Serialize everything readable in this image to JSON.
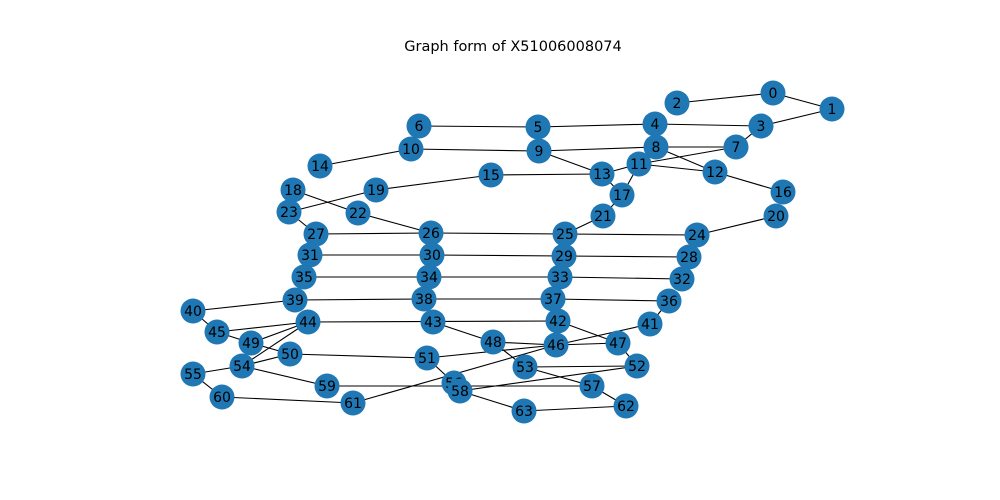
{
  "title": "Graph form of X51006008074",
  "style": {
    "node_color": "#1f77b4",
    "edge_color": "#000000",
    "background": "#ffffff"
  },
  "nodes": [
    "0",
    "1",
    "2",
    "3",
    "4",
    "5",
    "6",
    "7",
    "8",
    "9",
    "10",
    "11",
    "12",
    "13",
    "14",
    "15",
    "16",
    "17",
    "18",
    "19",
    "20",
    "21",
    "22",
    "23",
    "24",
    "25",
    "26",
    "27",
    "28",
    "29",
    "30",
    "31",
    "32",
    "33",
    "34",
    "35",
    "36",
    "37",
    "38",
    "39",
    "40",
    "41",
    "42",
    "43",
    "44",
    "45",
    "46",
    "47",
    "48",
    "49",
    "50",
    "51",
    "52",
    "53",
    "54",
    "55",
    "56",
    "57",
    "58",
    "59",
    "60",
    "61",
    "62",
    "63"
  ],
  "edges": [
    [
      "2",
      "0"
    ],
    [
      "0",
      "1"
    ],
    [
      "1",
      "3"
    ],
    [
      "4",
      "3"
    ],
    [
      "6",
      "5"
    ],
    [
      "5",
      "4"
    ],
    [
      "3",
      "7"
    ],
    [
      "7",
      "11"
    ],
    [
      "8",
      "7"
    ],
    [
      "10",
      "9"
    ],
    [
      "9",
      "8"
    ],
    [
      "9",
      "13"
    ],
    [
      "4",
      "8"
    ],
    [
      "8",
      "12"
    ],
    [
      "13",
      "17"
    ],
    [
      "11",
      "12"
    ],
    [
      "15",
      "13"
    ],
    [
      "13",
      "11"
    ],
    [
      "11",
      "17"
    ],
    [
      "12",
      "16"
    ],
    [
      "14",
      "10"
    ],
    [
      "18",
      "22"
    ],
    [
      "19",
      "15"
    ],
    [
      "23",
      "19"
    ],
    [
      "18",
      "23"
    ],
    [
      "23",
      "27"
    ],
    [
      "22",
      "26"
    ],
    [
      "17",
      "21"
    ],
    [
      "21",
      "25"
    ],
    [
      "20",
      "24"
    ],
    [
      "27",
      "26"
    ],
    [
      "26",
      "25"
    ],
    [
      "25",
      "24"
    ],
    [
      "31",
      "30"
    ],
    [
      "30",
      "29"
    ],
    [
      "29",
      "28"
    ],
    [
      "35",
      "34"
    ],
    [
      "34",
      "33"
    ],
    [
      "33",
      "32"
    ],
    [
      "39",
      "38"
    ],
    [
      "38",
      "37"
    ],
    [
      "37",
      "36"
    ],
    [
      "40",
      "39"
    ],
    [
      "36",
      "41"
    ],
    [
      "45",
      "44"
    ],
    [
      "44",
      "42"
    ],
    [
      "43",
      "48"
    ],
    [
      "42",
      "47"
    ],
    [
      "41",
      "46"
    ],
    [
      "40",
      "45"
    ],
    [
      "45",
      "49"
    ],
    [
      "44",
      "49"
    ],
    [
      "44",
      "54"
    ],
    [
      "49",
      "50"
    ],
    [
      "48",
      "53"
    ],
    [
      "46",
      "47"
    ],
    [
      "48",
      "46"
    ],
    [
      "47",
      "52"
    ],
    [
      "46",
      "51"
    ],
    [
      "50",
      "51"
    ],
    [
      "53",
      "57"
    ],
    [
      "53",
      "52"
    ],
    [
      "54",
      "50"
    ],
    [
      "55",
      "54"
    ],
    [
      "54",
      "59"
    ],
    [
      "51",
      "56"
    ],
    [
      "52",
      "58"
    ],
    [
      "58",
      "63"
    ],
    [
      "56",
      "58"
    ],
    [
      "59",
      "57"
    ],
    [
      "57",
      "62"
    ],
    [
      "63",
      "62"
    ],
    [
      "55",
      "60"
    ],
    [
      "60",
      "61"
    ],
    [
      "61",
      "46"
    ]
  ]
}
